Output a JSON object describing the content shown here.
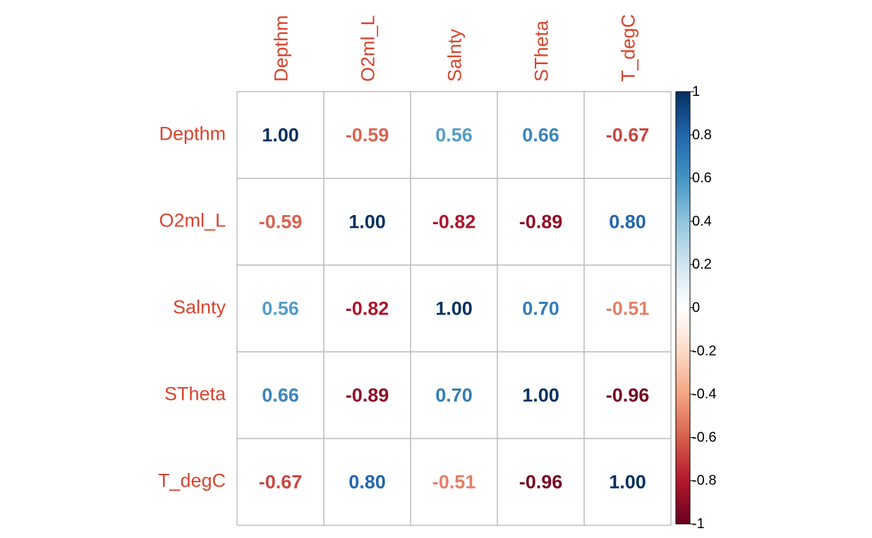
{
  "chart_data": {
    "type": "heatmap",
    "variables": [
      "Depthm",
      "O2ml_L",
      "Salnty",
      "STheta",
      "T_degC"
    ],
    "matrix": [
      [
        1.0,
        -0.59,
        0.56,
        0.66,
        -0.67
      ],
      [
        -0.59,
        1.0,
        -0.82,
        -0.89,
        0.8
      ],
      [
        0.56,
        -0.82,
        1.0,
        0.7,
        -0.51
      ],
      [
        0.66,
        -0.89,
        0.7,
        1.0,
        -0.96
      ],
      [
        -0.67,
        0.8,
        -0.51,
        -0.96,
        1.0
      ]
    ],
    "labels": [
      [
        "1.00",
        "-0.59",
        "0.56",
        "0.66",
        "-0.67"
      ],
      [
        "-0.59",
        "1.00",
        "-0.82",
        "-0.89",
        "0.80"
      ],
      [
        "0.56",
        "-0.82",
        "1.00",
        "0.70",
        "-0.51"
      ],
      [
        "0.66",
        "-0.89",
        "0.70",
        "1.00",
        "-0.96"
      ],
      [
        "-0.67",
        "0.80",
        "-0.51",
        "-0.96",
        "1.00"
      ]
    ],
    "colorbar": {
      "range": [
        -1,
        1
      ],
      "ticks": [
        1,
        0.8,
        0.6,
        0.4,
        0.2,
        0,
        -0.2,
        -0.4,
        -0.6,
        -0.8,
        -1
      ],
      "tick_labels": [
        "1",
        "0.8",
        "0.6",
        "0.4",
        "0.2",
        "0",
        "-0.2",
        "-0.4",
        "-0.6",
        "-0.8",
        "-1"
      ],
      "colors": [
        "#67001F",
        "#B2182B",
        "#D6604D",
        "#F4A582",
        "#FDDBC7",
        "#FFFFFF",
        "#D1E5F0",
        "#92C5DE",
        "#4393C3",
        "#2166AC",
        "#053061"
      ]
    },
    "label_color": "#D9442E",
    "grid_color": "#BFBFBF"
  }
}
